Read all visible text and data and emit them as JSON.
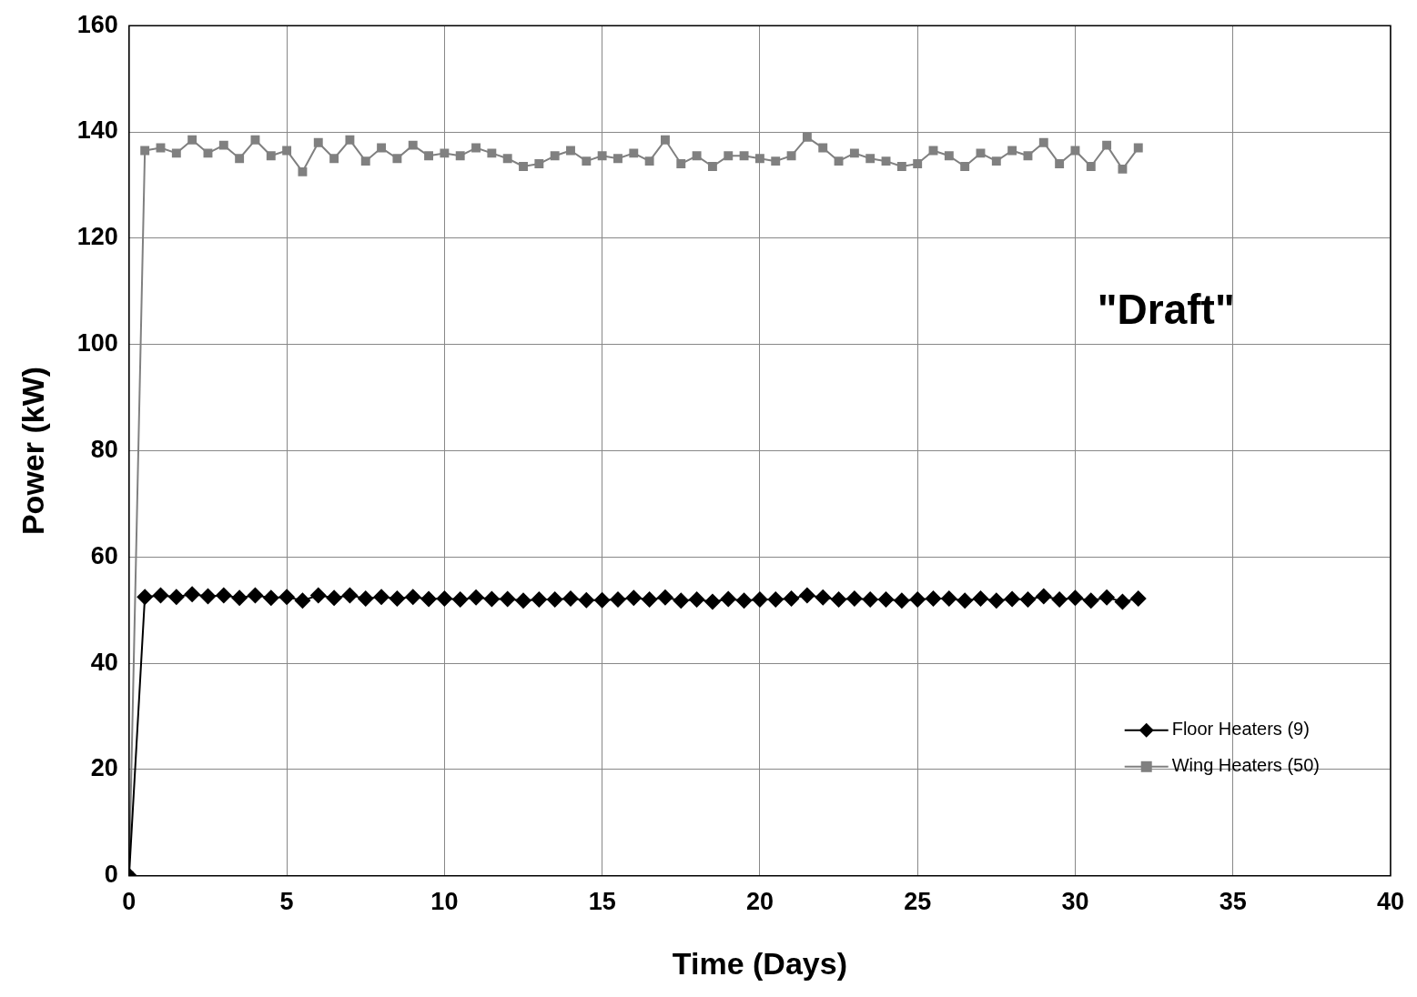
{
  "chart_data": {
    "type": "line",
    "xlabel": "Time (Days)",
    "ylabel": "Power (kW)",
    "annotations": [
      "\"Draft\""
    ],
    "x": [
      0,
      0.5,
      1,
      1.5,
      2,
      2.5,
      3,
      3.5,
      4,
      4.5,
      5,
      5.5,
      6,
      6.5,
      7,
      7.5,
      8,
      8.5,
      9,
      9.5,
      10,
      10.5,
      11,
      11.5,
      12,
      12.5,
      13,
      13.5,
      14,
      14.5,
      15,
      15.5,
      16,
      16.5,
      17,
      17.5,
      18,
      18.5,
      19,
      19.5,
      20,
      20.5,
      21,
      21.5,
      22,
      22.5,
      23,
      23.5,
      24,
      24.5,
      25,
      25.5,
      26,
      26.5,
      27,
      27.5,
      28,
      28.5,
      29,
      29.5,
      30,
      30.5,
      31,
      31.5,
      32
    ],
    "series": [
      {
        "name": "Floor Heaters (9)",
        "color": "#000000",
        "marker": "diamond",
        "values": [
          0,
          52.5,
          52.8,
          52.5,
          53,
          52.6,
          52.8,
          52.3,
          52.8,
          52.3,
          52.5,
          51.8,
          52.8,
          52.3,
          52.8,
          52.2,
          52.5,
          52.2,
          52.5,
          52.1,
          52.2,
          52,
          52.4,
          52.1,
          52.1,
          51.8,
          52,
          52,
          52.2,
          51.9,
          51.9,
          52,
          52.3,
          52,
          52.4,
          51.8,
          52,
          51.6,
          52.1,
          51.8,
          52,
          52,
          52.2,
          52.8,
          52.4,
          52,
          52.2,
          52,
          52,
          51.8,
          52,
          52.2,
          52.2,
          51.8,
          52.2,
          51.8,
          52.1,
          52,
          52.6,
          52,
          52.3,
          51.8,
          52.4,
          51.6,
          52.2
        ]
      },
      {
        "name": "Wing Heaters (50)",
        "color": "#808080",
        "marker": "square",
        "values": [
          0,
          136.5,
          137,
          136,
          138.5,
          136,
          137.5,
          135,
          138.5,
          135.5,
          136.5,
          132.5,
          138,
          135,
          138.5,
          134.5,
          137,
          135,
          137.5,
          135.5,
          136,
          135.5,
          137,
          136,
          135,
          133.5,
          134,
          135.5,
          136.5,
          134.5,
          135.5,
          135,
          136,
          134.5,
          138.5,
          134,
          135.5,
          133.5,
          135.5,
          135.5,
          135,
          134.5,
          135.5,
          139,
          137,
          134.5,
          136,
          135,
          134.5,
          133.5,
          134,
          136.5,
          135.5,
          133.5,
          136,
          134.5,
          136.5,
          135.5,
          138,
          134,
          136.5,
          133.5,
          137.5,
          133,
          137
        ]
      }
    ],
    "xlim": [
      0,
      40
    ],
    "xticks": [
      0,
      5,
      10,
      15,
      20,
      25,
      30,
      35,
      40
    ],
    "ylim": [
      0,
      160
    ],
    "yticks": [
      0,
      20,
      40,
      60,
      80,
      100,
      120,
      140,
      160
    ],
    "grid": true,
    "legend": "bottom right",
    "line_style": "solid"
  }
}
